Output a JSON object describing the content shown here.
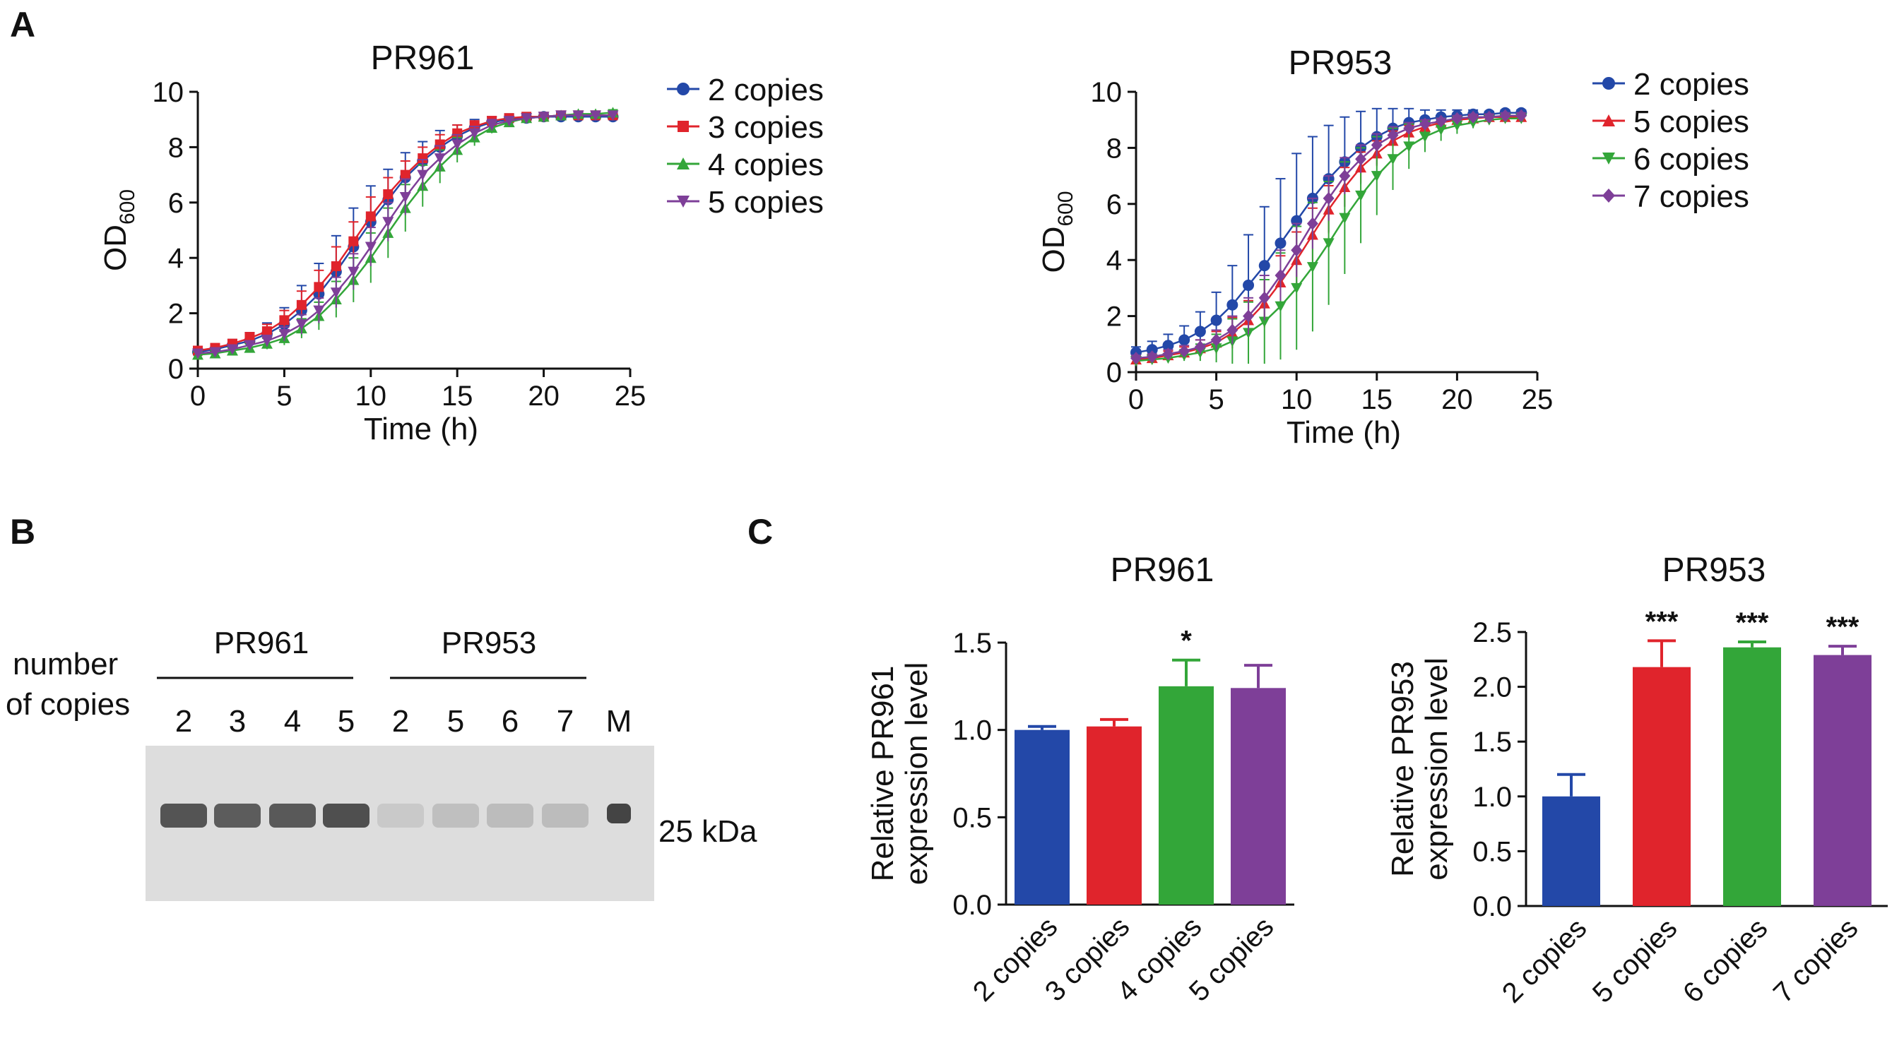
{
  "panels": {
    "a": "A",
    "b": "B",
    "c": "C"
  },
  "colors": {
    "blue": "#2348a8",
    "red": "#e0242c",
    "green": "#33a639",
    "purple": "#7e3f98"
  },
  "gel": {
    "row_label_line1": "number",
    "row_label_line2": "of copies",
    "group1": "PR961",
    "group2": "PR953",
    "lanes": [
      "2",
      "3",
      "4",
      "5",
      "2",
      "5",
      "6",
      "7",
      "M"
    ],
    "marker": "25 kDa",
    "band_intensity": [
      0.85,
      0.8,
      0.82,
      0.88,
      0.12,
      0.18,
      0.2,
      0.2,
      0.95
    ]
  },
  "chart_data": [
    {
      "id": "a1",
      "type": "line",
      "title": "PR961",
      "xlabel": "Time (h)",
      "ylabel": "OD",
      "ylabel_sub": "600",
      "xlim": [
        0,
        25
      ],
      "ylim": [
        0,
        10
      ],
      "xticks": [
        0,
        5,
        10,
        15,
        20,
        25
      ],
      "yticks": [
        0,
        2,
        4,
        6,
        8,
        10
      ],
      "x": [
        0,
        1,
        2,
        3,
        4,
        5,
        6,
        7,
        8,
        9,
        10,
        11,
        12,
        13,
        14,
        15,
        16,
        17,
        18,
        19,
        20,
        21,
        22,
        23,
        24
      ],
      "series": [
        {
          "name": "2 copies",
          "color": "#2348a8",
          "marker": "circle",
          "values": [
            0.6,
            0.7,
            0.85,
            1.0,
            1.25,
            1.6,
            2.1,
            2.7,
            3.5,
            4.4,
            5.3,
            6.1,
            6.9,
            7.5,
            8.0,
            8.4,
            8.7,
            8.9,
            9.0,
            9.05,
            9.1,
            9.1,
            9.1,
            9.1,
            9.1
          ],
          "errors": [
            0.1,
            0.15,
            0.2,
            0.3,
            0.4,
            0.6,
            0.9,
            1.1,
            1.3,
            1.4,
            1.3,
            1.1,
            0.9,
            0.7,
            0.6,
            0.4,
            0.3,
            0.2,
            0.2,
            0.15,
            0.1,
            0.1,
            0.1,
            0.1,
            0.1
          ]
        },
        {
          "name": "3 copies",
          "color": "#e0242c",
          "marker": "square",
          "values": [
            0.65,
            0.75,
            0.9,
            1.1,
            1.35,
            1.75,
            2.3,
            2.95,
            3.7,
            4.6,
            5.5,
            6.3,
            7.0,
            7.6,
            8.1,
            8.5,
            8.75,
            8.95,
            9.05,
            9.1,
            9.1,
            9.15,
            9.15,
            9.15,
            9.15
          ],
          "errors": [
            0.1,
            0.1,
            0.15,
            0.2,
            0.25,
            0.35,
            0.5,
            0.6,
            0.7,
            0.7,
            0.7,
            0.6,
            0.5,
            0.4,
            0.35,
            0.3,
            0.2,
            0.15,
            0.1,
            0.1,
            0.1,
            0.1,
            0.1,
            0.1,
            0.1
          ]
        },
        {
          "name": "4 copies",
          "color": "#33a639",
          "marker": "triangle-up",
          "values": [
            0.5,
            0.55,
            0.65,
            0.75,
            0.9,
            1.1,
            1.45,
            1.9,
            2.5,
            3.2,
            4.0,
            4.9,
            5.8,
            6.6,
            7.3,
            7.9,
            8.35,
            8.7,
            8.9,
            9.05,
            9.1,
            9.15,
            9.2,
            9.2,
            9.25
          ],
          "errors": [
            0.1,
            0.1,
            0.1,
            0.15,
            0.2,
            0.25,
            0.35,
            0.5,
            0.65,
            0.8,
            0.9,
            0.9,
            0.85,
            0.75,
            0.6,
            0.45,
            0.3,
            0.2,
            0.15,
            0.1,
            0.1,
            0.1,
            0.1,
            0.1,
            0.1
          ]
        },
        {
          "name": "5 copies",
          "color": "#7e3f98",
          "marker": "triangle-down",
          "values": [
            0.55,
            0.6,
            0.7,
            0.85,
            1.0,
            1.25,
            1.6,
            2.1,
            2.75,
            3.5,
            4.4,
            5.3,
            6.2,
            7.0,
            7.6,
            8.1,
            8.5,
            8.8,
            8.95,
            9.05,
            9.1,
            9.15,
            9.15,
            9.15,
            9.15
          ],
          "errors": [
            0.1,
            0.1,
            0.1,
            0.15,
            0.2,
            0.25,
            0.35,
            0.45,
            0.55,
            0.65,
            0.7,
            0.7,
            0.65,
            0.55,
            0.45,
            0.35,
            0.25,
            0.2,
            0.15,
            0.1,
            0.1,
            0.1,
            0.1,
            0.1,
            0.1
          ]
        }
      ]
    },
    {
      "id": "a2",
      "type": "line",
      "title": "PR953",
      "xlabel": "Time (h)",
      "ylabel": "OD",
      "ylabel_sub": "600",
      "xlim": [
        0,
        25
      ],
      "ylim": [
        0,
        10
      ],
      "xticks": [
        0,
        5,
        10,
        15,
        20,
        25
      ],
      "yticks": [
        0,
        2,
        4,
        6,
        8,
        10
      ],
      "x": [
        0,
        1,
        2,
        3,
        4,
        5,
        6,
        7,
        8,
        9,
        10,
        11,
        12,
        13,
        14,
        15,
        16,
        17,
        18,
        19,
        20,
        21,
        22,
        23,
        24
      ],
      "series": [
        {
          "name": "2 copies",
          "color": "#2348a8",
          "marker": "circle",
          "values": [
            0.7,
            0.8,
            0.95,
            1.15,
            1.45,
            1.85,
            2.4,
            3.1,
            3.8,
            4.6,
            5.4,
            6.2,
            6.9,
            7.5,
            8.0,
            8.4,
            8.7,
            8.9,
            9.0,
            9.1,
            9.15,
            9.2,
            9.2,
            9.25,
            9.25
          ],
          "errors": [
            0.2,
            0.3,
            0.4,
            0.5,
            0.7,
            1.0,
            1.4,
            1.8,
            2.1,
            2.3,
            2.4,
            2.2,
            1.9,
            1.6,
            1.3,
            1.0,
            0.7,
            0.5,
            0.35,
            0.25,
            0.2,
            0.15,
            0.1,
            0.1,
            0.1
          ]
        },
        {
          "name": "5 copies",
          "color": "#e0242c",
          "marker": "triangle-up",
          "values": [
            0.45,
            0.5,
            0.6,
            0.7,
            0.85,
            1.05,
            1.4,
            1.85,
            2.45,
            3.2,
            4.0,
            4.9,
            5.8,
            6.6,
            7.3,
            7.8,
            8.25,
            8.55,
            8.75,
            8.9,
            9.0,
            9.05,
            9.1,
            9.1,
            9.1
          ],
          "errors": [
            0.1,
            0.1,
            0.15,
            0.2,
            0.3,
            0.4,
            0.55,
            0.7,
            0.85,
            0.95,
            1.0,
            0.95,
            0.85,
            0.7,
            0.55,
            0.45,
            0.35,
            0.25,
            0.2,
            0.15,
            0.1,
            0.1,
            0.1,
            0.1,
            0.1
          ]
        },
        {
          "name": "6 copies",
          "color": "#33a639",
          "marker": "triangle-down",
          "values": [
            0.4,
            0.45,
            0.5,
            0.6,
            0.7,
            0.85,
            1.1,
            1.4,
            1.8,
            2.35,
            3.0,
            3.75,
            4.6,
            5.5,
            6.3,
            7.0,
            7.6,
            8.05,
            8.4,
            8.65,
            8.8,
            8.9,
            9.0,
            9.05,
            9.05
          ],
          "errors": [
            0.1,
            0.1,
            0.15,
            0.2,
            0.3,
            0.5,
            0.8,
            1.1,
            1.5,
            1.9,
            2.2,
            2.3,
            2.2,
            2.0,
            1.7,
            1.4,
            1.1,
            0.8,
            0.55,
            0.4,
            0.3,
            0.2,
            0.15,
            0.1,
            0.1
          ]
        },
        {
          "name": "7 copies",
          "color": "#7e3f98",
          "marker": "diamond",
          "values": [
            0.5,
            0.55,
            0.65,
            0.75,
            0.9,
            1.15,
            1.5,
            2.0,
            2.65,
            3.45,
            4.35,
            5.3,
            6.2,
            7.0,
            7.6,
            8.1,
            8.45,
            8.7,
            8.85,
            8.95,
            9.05,
            9.1,
            9.1,
            9.15,
            9.15
          ],
          "errors": [
            0.1,
            0.1,
            0.15,
            0.2,
            0.25,
            0.35,
            0.5,
            0.65,
            0.8,
            0.9,
            0.95,
            0.9,
            0.8,
            0.65,
            0.5,
            0.4,
            0.3,
            0.2,
            0.15,
            0.1,
            0.1,
            0.1,
            0.1,
            0.1,
            0.1
          ]
        }
      ]
    },
    {
      "id": "c1",
      "type": "bar",
      "title": "PR961",
      "ylabel_line1": "Relative PR961",
      "ylabel_line2": "expression level",
      "ylim": [
        0,
        1.5
      ],
      "yticks": [
        "0.0",
        "0.5",
        "1.0",
        "1.5"
      ],
      "categories": [
        "2 copies",
        "3 copies",
        "4 copies",
        "5 copies"
      ],
      "values": [
        1.0,
        1.02,
        1.25,
        1.24
      ],
      "errors": [
        0.02,
        0.04,
        0.15,
        0.13
      ],
      "significance": [
        "",
        "",
        "*",
        ""
      ],
      "colors": [
        "#2348a8",
        "#e0242c",
        "#33a639",
        "#7e3f98"
      ]
    },
    {
      "id": "c2",
      "type": "bar",
      "title": "PR953",
      "ylabel_line1": "Relative PR953",
      "ylabel_line2": "expression level",
      "ylim": [
        0,
        2.5
      ],
      "yticks": [
        "0.0",
        "0.5",
        "1.0",
        "1.5",
        "2.0",
        "2.5"
      ],
      "categories": [
        "2 copies",
        "5 copies",
        "6 copies",
        "7 copies"
      ],
      "values": [
        1.0,
        2.18,
        2.36,
        2.29
      ],
      "errors": [
        0.2,
        0.24,
        0.05,
        0.08
      ],
      "significance": [
        "",
        "***",
        "***",
        "***"
      ],
      "colors": [
        "#2348a8",
        "#e0242c",
        "#33a639",
        "#7e3f98"
      ]
    }
  ]
}
